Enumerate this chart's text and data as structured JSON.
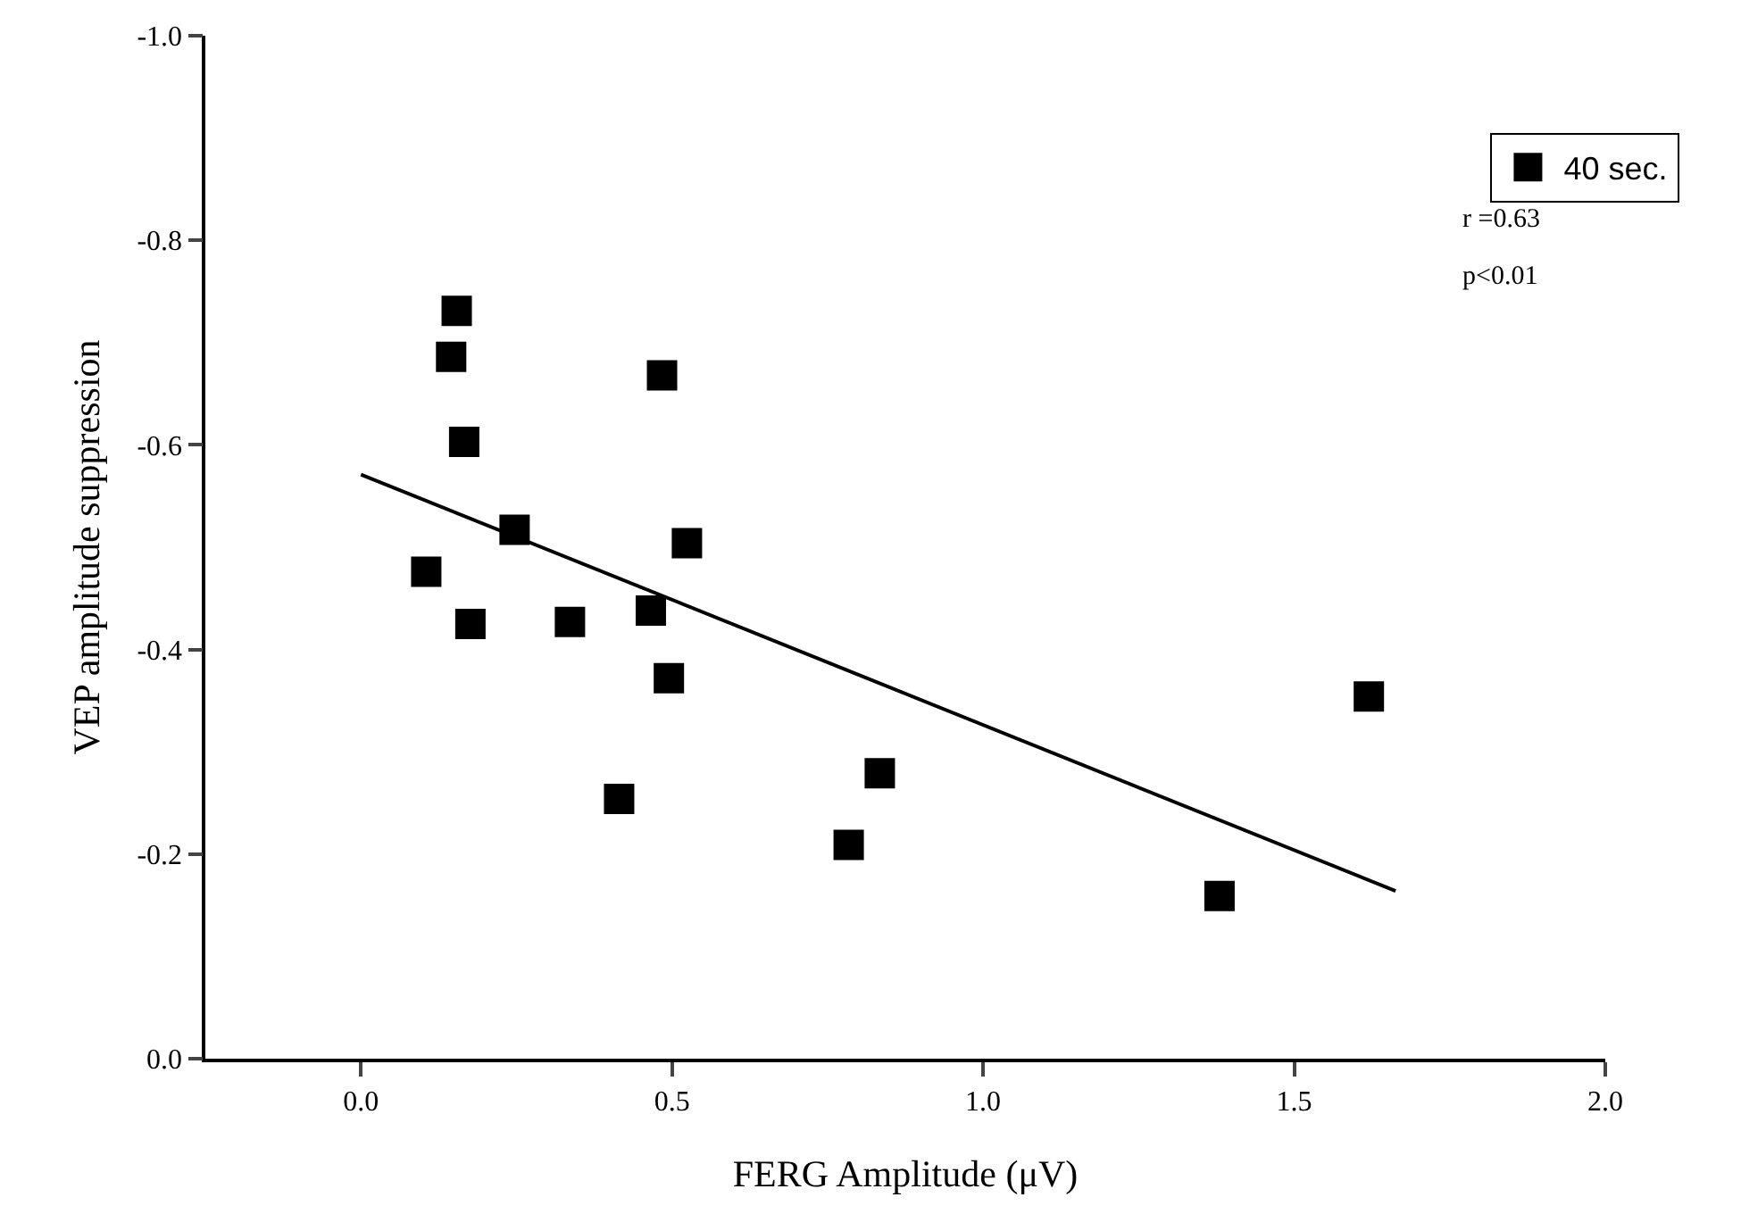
{
  "chart_data": {
    "type": "scatter",
    "xlabel": "FERG Amplitude (μV)",
    "ylabel": "VEP amplitude suppression",
    "xlim": [
      -0.25,
      2.0
    ],
    "xticks": [
      {
        "value": 0,
        "label": "0.0"
      },
      0.5,
      {
        "value": 1,
        "label": "1.0"
      },
      1.5,
      {
        "value": 2,
        "label": "2.0"
      }
    ],
    "ylim": [
      0,
      -1.0
    ],
    "yticks": [
      {
        "value": 0,
        "label": "0.0"
      },
      -0.2,
      -0.4,
      -0.6,
      -0.8,
      {
        "value": -1,
        "label": "-1.0"
      }
    ],
    "grid": false,
    "legend": "top right",
    "annotations": [
      "r =0.63",
      "p<0.01"
    ],
    "series": [
      {
        "name": "40 sec.",
        "color": "#000000",
        "marker": "square",
        "x": [
          0.154,
          0.145,
          0.166,
          0.247,
          0.105,
          0.176,
          0.336,
          0.466,
          0.484,
          0.524,
          0.495,
          0.415,
          0.834,
          0.784,
          1.38,
          1.62
        ],
        "values": [
          -0.731,
          -0.686,
          -0.603,
          -0.517,
          -0.476,
          -0.425,
          -0.427,
          -0.438,
          -0.668,
          -0.504,
          -0.372,
          -0.254,
          -0.279,
          -0.209,
          -0.159,
          -0.354
        ]
      },
      {
        "type": "line",
        "color": "#000000",
        "x": [
          0,
          1.663
        ],
        "values": [
          -0.571,
          -0.164
        ]
      }
    ]
  }
}
